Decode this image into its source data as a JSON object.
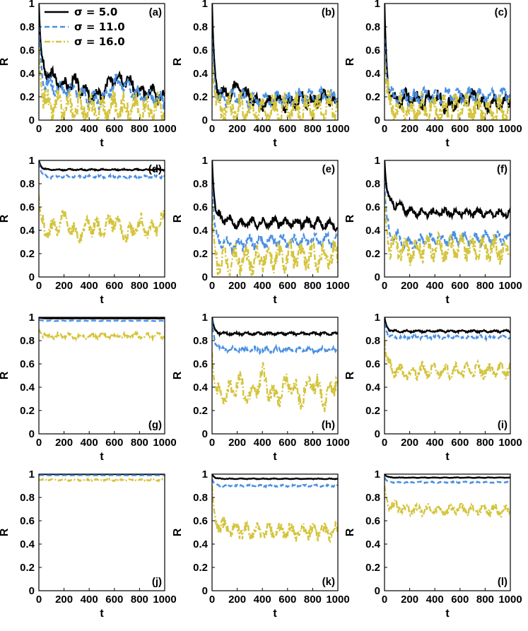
{
  "colors": {
    "sigma_5": "#000000",
    "sigma_11": "#4a90e2",
    "sigma_16": "#d4c43c"
  },
  "chart_data": [
    {
      "type": "line",
      "panel": "(a)",
      "xlabel": "t",
      "ylabel": "R",
      "xlim": [
        0,
        1000
      ],
      "ylim": [
        0,
        1
      ],
      "xticks": [
        "0",
        "200",
        "400",
        "600",
        "800",
        "1000"
      ],
      "yticks": [
        "0",
        "0.2",
        "0.4",
        "0.6",
        "0.8",
        "1"
      ],
      "x": [
        0,
        100,
        200,
        300,
        400,
        500,
        600,
        700,
        800,
        900,
        1000
      ],
      "series": [
        {
          "name": "σ = 5.0",
          "style": "solid",
          "values": [
            1,
            0.38,
            0.3,
            0.32,
            0.2,
            0.22,
            0.38,
            0.35,
            0.22,
            0.25,
            0.18
          ]
        },
        {
          "name": "σ = 11.0",
          "style": "dashed",
          "values": [
            0.8,
            0.3,
            0.25,
            0.27,
            0.18,
            0.17,
            0.32,
            0.3,
            0.2,
            0.2,
            0.14
          ]
        },
        {
          "name": "σ = 16.0",
          "style": "dashdot",
          "values": [
            0.62,
            0.12,
            0.1,
            0.12,
            0.08,
            0.09,
            0.12,
            0.1,
            0.09,
            0.1,
            0.09
          ]
        }
      ]
    },
    {
      "type": "line",
      "panel": "(b)",
      "xlabel": "t",
      "ylabel": "R",
      "xlim": [
        0,
        1000
      ],
      "ylim": [
        0,
        1
      ],
      "xticks": [
        "0",
        "200",
        "400",
        "600",
        "800",
        "1000"
      ],
      "yticks": [
        "0",
        "0.2",
        "0.4",
        "0.6",
        "0.8",
        "1"
      ],
      "x": [
        0,
        100,
        200,
        300,
        400,
        500,
        600,
        700,
        800,
        900,
        1000
      ],
      "series": [
        {
          "name": "σ = 5.0",
          "style": "solid",
          "values": [
            1,
            0.22,
            0.28,
            0.2,
            0.12,
            0.18,
            0.12,
            0.2,
            0.15,
            0.22,
            0.12
          ]
        },
        {
          "name": "σ = 11.0",
          "style": "dashed",
          "values": [
            0.7,
            0.18,
            0.2,
            0.16,
            0.17,
            0.18,
            0.18,
            0.2,
            0.2,
            0.2,
            0.2
          ]
        },
        {
          "name": "σ = 16.0",
          "style": "dashdot",
          "values": [
            0.55,
            0.1,
            0.09,
            0.08,
            0.1,
            0.08,
            0.1,
            0.1,
            0.1,
            0.1,
            0.1
          ]
        }
      ]
    },
    {
      "type": "line",
      "panel": "(c)",
      "xlabel": "t",
      "ylabel": "R",
      "xlim": [
        0,
        1000
      ],
      "ylim": [
        0,
        1
      ],
      "xticks": [
        "0",
        "200",
        "400",
        "600",
        "800",
        "1000"
      ],
      "yticks": [
        "0",
        "0.2",
        "0.4",
        "0.6",
        "0.8",
        "1"
      ],
      "x": [
        0,
        100,
        200,
        300,
        400,
        500,
        600,
        700,
        800,
        900,
        1000
      ],
      "series": [
        {
          "name": "σ = 5.0",
          "style": "solid",
          "values": [
            1,
            0.15,
            0.2,
            0.15,
            0.2,
            0.12,
            0.15,
            0.22,
            0.12,
            0.15,
            0.16
          ]
        },
        {
          "name": "σ = 11.0",
          "style": "dashed",
          "values": [
            0.7,
            0.2,
            0.18,
            0.22,
            0.2,
            0.22,
            0.2,
            0.22,
            0.2,
            0.22,
            0.22
          ]
        },
        {
          "name": "σ = 16.0",
          "style": "dashdot",
          "values": [
            0.55,
            0.1,
            0.08,
            0.09,
            0.1,
            0.08,
            0.1,
            0.09,
            0.09,
            0.08,
            0.08
          ]
        }
      ]
    },
    {
      "type": "line",
      "panel": "(d)",
      "xlabel": "t",
      "ylabel": "R",
      "xlim": [
        0,
        1000
      ],
      "ylim": [
        0,
        1
      ],
      "xticks": [
        "0",
        "200",
        "400",
        "600",
        "800",
        "1000"
      ],
      "yticks": [
        "0",
        "0.2",
        "0.4",
        "0.6",
        "0.8",
        "1"
      ],
      "x": [
        0,
        100,
        200,
        300,
        400,
        500,
        600,
        700,
        800,
        900,
        1000
      ],
      "series": [
        {
          "name": "σ = 5.0",
          "style": "solid",
          "values": [
            1,
            0.92,
            0.92,
            0.92,
            0.92,
            0.92,
            0.92,
            0.92,
            0.92,
            0.92,
            0.92
          ]
        },
        {
          "name": "σ = 11.0",
          "style": "dashed",
          "values": [
            0.98,
            0.86,
            0.86,
            0.86,
            0.86,
            0.86,
            0.86,
            0.86,
            0.86,
            0.86,
            0.86
          ]
        },
        {
          "name": "σ = 16.0",
          "style": "dashdot",
          "values": [
            0.7,
            0.4,
            0.5,
            0.35,
            0.45,
            0.4,
            0.5,
            0.35,
            0.45,
            0.4,
            0.5
          ]
        }
      ]
    },
    {
      "type": "line",
      "panel": "(e)",
      "xlabel": "t",
      "ylabel": "R",
      "xlim": [
        0,
        1000
      ],
      "ylim": [
        0,
        1
      ],
      "xticks": [
        "0",
        "200",
        "400",
        "600",
        "800",
        "1000"
      ],
      "yticks": [
        "0",
        "0.2",
        "0.4",
        "0.6",
        "0.8",
        "1"
      ],
      "x": [
        0,
        100,
        200,
        300,
        400,
        500,
        600,
        700,
        800,
        900,
        1000
      ],
      "series": [
        {
          "name": "σ = 5.0",
          "style": "solid",
          "values": [
            1,
            0.5,
            0.45,
            0.47,
            0.46,
            0.47,
            0.46,
            0.47,
            0.46,
            0.46,
            0.44
          ]
        },
        {
          "name": "σ = 11.0",
          "style": "dashed",
          "values": [
            0.8,
            0.3,
            0.27,
            0.3,
            0.3,
            0.32,
            0.3,
            0.3,
            0.32,
            0.32,
            0.3
          ]
        },
        {
          "name": "σ = 16.0",
          "style": "dashdot",
          "values": [
            0.62,
            0.12,
            0.15,
            0.15,
            0.17,
            0.17,
            0.18,
            0.18,
            0.17,
            0.18,
            0.2
          ]
        }
      ]
    },
    {
      "type": "line",
      "panel": "(f)",
      "xlabel": "t",
      "ylabel": "R",
      "xlim": [
        0,
        1000
      ],
      "ylim": [
        0,
        1
      ],
      "xticks": [
        "0",
        "200",
        "400",
        "600",
        "800",
        "1000"
      ],
      "yticks": [
        "0",
        "0.2",
        "0.4",
        "0.6",
        "0.8",
        "1"
      ],
      "x": [
        0,
        100,
        200,
        300,
        400,
        500,
        600,
        700,
        800,
        900,
        1000
      ],
      "series": [
        {
          "name": "σ = 5.0",
          "style": "solid",
          "values": [
            1,
            0.62,
            0.56,
            0.55,
            0.55,
            0.55,
            0.55,
            0.55,
            0.55,
            0.55,
            0.55
          ]
        },
        {
          "name": "σ = 11.0",
          "style": "dashed",
          "values": [
            0.8,
            0.35,
            0.28,
            0.32,
            0.33,
            0.32,
            0.33,
            0.32,
            0.34,
            0.33,
            0.33
          ]
        },
        {
          "name": "σ = 16.0",
          "style": "dashdot",
          "values": [
            0.7,
            0.25,
            0.22,
            0.25,
            0.24,
            0.25,
            0.26,
            0.25,
            0.25,
            0.24,
            0.22
          ]
        }
      ]
    },
    {
      "type": "line",
      "panel": "(g)",
      "xlabel": "t",
      "ylabel": "R",
      "xlim": [
        0,
        1000
      ],
      "ylim": [
        0,
        1
      ],
      "xticks": [
        "0",
        "200",
        "400",
        "600",
        "800",
        "1000"
      ],
      "yticks": [
        "0",
        "0.2",
        "0.4",
        "0.6",
        "0.8",
        "1"
      ],
      "x": [
        0,
        100,
        200,
        300,
        400,
        500,
        600,
        700,
        800,
        900,
        1000
      ],
      "series": [
        {
          "name": "σ = 5.0",
          "style": "solid",
          "values": [
            1,
            0.99,
            0.99,
            0.99,
            0.99,
            0.99,
            0.99,
            0.99,
            0.99,
            0.99,
            0.99
          ]
        },
        {
          "name": "σ = 11.0",
          "style": "dashed",
          "values": [
            0.98,
            0.97,
            0.97,
            0.97,
            0.97,
            0.97,
            0.97,
            0.97,
            0.97,
            0.97,
            0.97
          ]
        },
        {
          "name": "σ = 16.0",
          "style": "dashdot",
          "values": [
            0.9,
            0.84,
            0.84,
            0.84,
            0.84,
            0.84,
            0.84,
            0.84,
            0.84,
            0.84,
            0.84
          ]
        }
      ]
    },
    {
      "type": "line",
      "panel": "(h)",
      "xlabel": "t",
      "ylabel": "R",
      "xlim": [
        0,
        1000
      ],
      "ylim": [
        0,
        1
      ],
      "xticks": [
        "0",
        "200",
        "400",
        "600",
        "800",
        "1000"
      ],
      "yticks": [
        "0",
        "0.2",
        "0.4",
        "0.6",
        "0.8",
        "1"
      ],
      "x": [
        0,
        100,
        200,
        300,
        400,
        500,
        600,
        700,
        800,
        900,
        1000
      ],
      "series": [
        {
          "name": "σ = 5.0",
          "style": "solid",
          "values": [
            1,
            0.86,
            0.86,
            0.86,
            0.86,
            0.86,
            0.86,
            0.86,
            0.86,
            0.86,
            0.86
          ]
        },
        {
          "name": "σ = 11.0",
          "style": "dashed",
          "values": [
            0.98,
            0.73,
            0.72,
            0.72,
            0.72,
            0.72,
            0.72,
            0.72,
            0.72,
            0.72,
            0.72
          ]
        },
        {
          "name": "σ = 16.0",
          "style": "dashdot",
          "values": [
            0.7,
            0.3,
            0.45,
            0.3,
            0.5,
            0.3,
            0.45,
            0.3,
            0.45,
            0.3,
            0.5
          ]
        }
      ]
    },
    {
      "type": "line",
      "panel": "(i)",
      "xlabel": "t",
      "ylabel": "R",
      "xlim": [
        0,
        1000
      ],
      "ylim": [
        0,
        1
      ],
      "xticks": [
        "0",
        "200",
        "400",
        "600",
        "800",
        "1000"
      ],
      "yticks": [
        "0",
        "0.2",
        "0.4",
        "0.6",
        "0.8",
        "1"
      ],
      "x": [
        0,
        100,
        200,
        300,
        400,
        500,
        600,
        700,
        800,
        900,
        1000
      ],
      "series": [
        {
          "name": "σ = 5.0",
          "style": "solid",
          "values": [
            1,
            0.88,
            0.88,
            0.88,
            0.88,
            0.88,
            0.88,
            0.88,
            0.88,
            0.88,
            0.88
          ]
        },
        {
          "name": "σ = 11.0",
          "style": "dashed",
          "values": [
            0.95,
            0.83,
            0.83,
            0.83,
            0.83,
            0.83,
            0.83,
            0.83,
            0.83,
            0.83,
            0.83
          ]
        },
        {
          "name": "σ = 16.0",
          "style": "dashdot",
          "values": [
            0.8,
            0.55,
            0.52,
            0.55,
            0.53,
            0.55,
            0.54,
            0.55,
            0.54,
            0.55,
            0.54
          ]
        }
      ]
    },
    {
      "type": "line",
      "panel": "(j)",
      "xlabel": "t",
      "ylabel": "R",
      "xlim": [
        0,
        1000
      ],
      "ylim": [
        0,
        1
      ],
      "xticks": [
        "0",
        "200",
        "400",
        "600",
        "800",
        "1000"
      ],
      "yticks": [
        "0",
        "0.2",
        "0.4",
        "0.6",
        "0.8",
        "1"
      ],
      "x": [
        0,
        100,
        200,
        300,
        400,
        500,
        600,
        700,
        800,
        900,
        1000
      ],
      "series": [
        {
          "name": "σ = 5.0",
          "style": "solid",
          "values": [
            1,
            1,
            1,
            1,
            1,
            1,
            1,
            1,
            1,
            1,
            1
          ]
        },
        {
          "name": "σ = 11.0",
          "style": "dashed",
          "values": [
            0.99,
            0.99,
            0.99,
            0.99,
            0.99,
            0.99,
            0.99,
            0.99,
            0.99,
            0.99,
            0.99
          ]
        },
        {
          "name": "σ = 16.0",
          "style": "dashdot",
          "values": [
            0.95,
            0.95,
            0.95,
            0.95,
            0.95,
            0.95,
            0.95,
            0.95,
            0.95,
            0.95,
            0.95
          ]
        }
      ]
    },
    {
      "type": "line",
      "panel": "(k)",
      "xlabel": "t",
      "ylabel": "R",
      "xlim": [
        0,
        1000
      ],
      "ylim": [
        0,
        1
      ],
      "xticks": [
        "0",
        "200",
        "400",
        "600",
        "800",
        "1000"
      ],
      "yticks": [
        "0",
        "0.2",
        "0.4",
        "0.6",
        "0.8",
        "1"
      ],
      "x": [
        0,
        100,
        200,
        300,
        400,
        500,
        600,
        700,
        800,
        900,
        1000
      ],
      "series": [
        {
          "name": "σ = 5.0",
          "style": "solid",
          "values": [
            1,
            0.96,
            0.96,
            0.96,
            0.96,
            0.96,
            0.96,
            0.96,
            0.96,
            0.96,
            0.96
          ]
        },
        {
          "name": "σ = 11.0",
          "style": "dashed",
          "values": [
            0.96,
            0.9,
            0.9,
            0.9,
            0.9,
            0.9,
            0.9,
            0.9,
            0.9,
            0.9,
            0.9
          ]
        },
        {
          "name": "σ = 16.0",
          "style": "dashdot",
          "values": [
            0.9,
            0.55,
            0.52,
            0.51,
            0.51,
            0.51,
            0.51,
            0.51,
            0.51,
            0.51,
            0.52
          ]
        }
      ]
    },
    {
      "type": "line",
      "panel": "(l)",
      "xlabel": "t",
      "ylabel": "R",
      "xlim": [
        0,
        1000
      ],
      "ylim": [
        0,
        1
      ],
      "xticks": [
        "0",
        "200",
        "400",
        "600",
        "800",
        "1000"
      ],
      "yticks": [
        "0",
        "0.2",
        "0.4",
        "0.6",
        "0.8",
        "1"
      ],
      "x": [
        0,
        100,
        200,
        300,
        400,
        500,
        600,
        700,
        800,
        900,
        1000
      ],
      "series": [
        {
          "name": "σ = 5.0",
          "style": "solid",
          "values": [
            1,
            0.97,
            0.97,
            0.97,
            0.97,
            0.97,
            0.97,
            0.97,
            0.97,
            0.97,
            0.97
          ]
        },
        {
          "name": "σ = 11.0",
          "style": "dashed",
          "values": [
            0.97,
            0.93,
            0.93,
            0.93,
            0.93,
            0.93,
            0.93,
            0.93,
            0.93,
            0.93,
            0.93
          ]
        },
        {
          "name": "σ = 16.0",
          "style": "dashdot",
          "values": [
            0.9,
            0.72,
            0.7,
            0.69,
            0.7,
            0.69,
            0.7,
            0.69,
            0.7,
            0.69,
            0.68
          ]
        }
      ]
    }
  ]
}
